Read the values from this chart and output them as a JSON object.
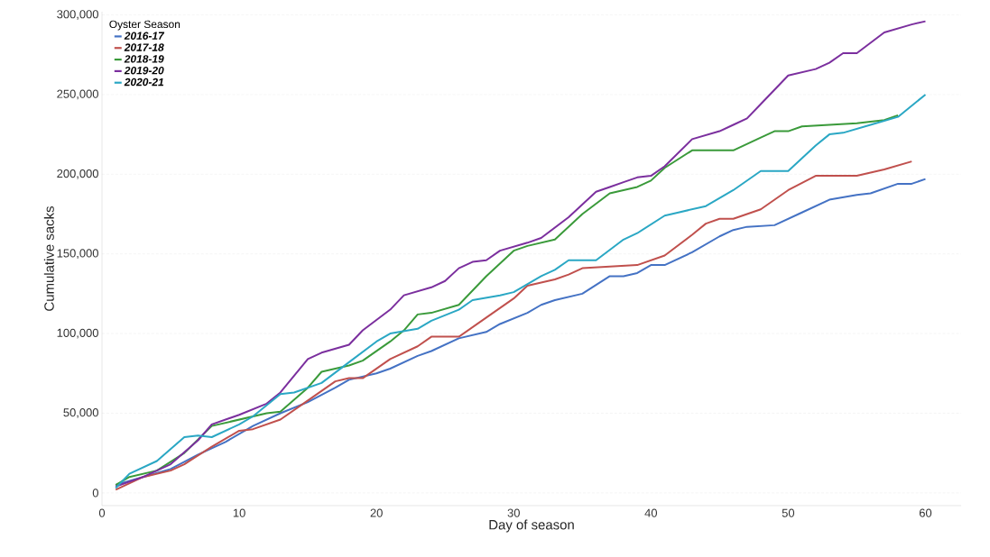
{
  "chart_data": {
    "type": "line",
    "xlabel": "Day of season",
    "ylabel": "Cumulative sacks",
    "legend_title": "Oyster Season",
    "xlim": [
      0,
      62.6
    ],
    "ylim": [
      -8000,
      302000
    ],
    "xticks": [
      0,
      10,
      20,
      30,
      40,
      50,
      60
    ],
    "yticks": [
      {
        "value": 0,
        "label": "0"
      },
      {
        "value": 50000,
        "label": "50,000"
      },
      {
        "value": 100000,
        "label": "100,000"
      },
      {
        "value": 150000,
        "label": "150,000"
      },
      {
        "value": 200000,
        "label": "200,000"
      },
      {
        "value": 250000,
        "label": "250,000"
      },
      {
        "value": 300000,
        "label": "300,000"
      }
    ],
    "grid": "y",
    "legend": "top left",
    "marker": "none",
    "line_style": "solid",
    "series": [
      {
        "name": "2016-17",
        "color": "#4472c4",
        "x": [
          1,
          3,
          5,
          7,
          9,
          11,
          13,
          15,
          17,
          18,
          20,
          21,
          23,
          24,
          26,
          28,
          29,
          31,
          32,
          33,
          35,
          37,
          38,
          39,
          40,
          41,
          43,
          45,
          46,
          47,
          49,
          51,
          53,
          55,
          56,
          58,
          59,
          60
        ],
        "values": [
          5000,
          10000,
          15000,
          24000,
          32000,
          42000,
          50000,
          57000,
          66000,
          71000,
          75000,
          78000,
          86000,
          89000,
          97000,
          101000,
          106000,
          113000,
          118000,
          121000,
          125000,
          136000,
          136000,
          138000,
          143000,
          143000,
          151000,
          161000,
          165000,
          167000,
          168000,
          176000,
          184000,
          187000,
          188000,
          194000,
          194000,
          197000
        ]
      },
      {
        "name": "2017-18",
        "color": "#c0504d",
        "x": [
          1,
          3,
          5,
          6,
          8,
          10,
          11,
          13,
          15,
          17,
          18,
          19,
          21,
          23,
          24,
          26,
          28,
          30,
          31,
          33,
          34,
          35,
          37,
          39,
          41,
          43,
          44,
          45,
          46,
          48,
          50,
          52,
          55,
          57,
          59
        ],
        "values": [
          2000,
          10000,
          14000,
          18000,
          29000,
          39000,
          40000,
          46000,
          58000,
          70000,
          72000,
          72000,
          84000,
          92000,
          98000,
          98000,
          110000,
          122000,
          130000,
          134000,
          137000,
          141000,
          142000,
          143000,
          149000,
          162000,
          169000,
          172000,
          172000,
          178000,
          190000,
          199000,
          199000,
          203000,
          208000
        ]
      },
      {
        "name": "2018-19",
        "color": "#3a9a3a",
        "x": [
          1,
          2,
          4,
          6,
          8,
          10,
          12,
          13,
          15,
          16,
          18,
          19,
          21,
          22,
          23,
          24,
          26,
          28,
          30,
          31,
          33,
          35,
          37,
          39,
          40,
          41,
          43,
          46,
          48,
          49,
          50,
          51,
          55,
          57,
          58
        ],
        "values": [
          5000,
          10000,
          14000,
          25000,
          42000,
          46000,
          50000,
          51000,
          66000,
          76000,
          80000,
          83000,
          95000,
          102000,
          112000,
          113000,
          118000,
          136000,
          152000,
          155000,
          159000,
          175000,
          188000,
          192000,
          196000,
          204000,
          215000,
          215000,
          223000,
          227000,
          227000,
          230000,
          232000,
          234000,
          237000
        ]
      },
      {
        "name": "2019-20",
        "color": "#7b2f9e",
        "x": [
          1,
          3,
          5,
          7,
          8,
          10,
          12,
          13,
          15,
          16,
          18,
          19,
          21,
          22,
          24,
          25,
          26,
          27,
          28,
          29,
          31,
          32,
          34,
          36,
          37,
          38,
          39,
          40,
          41,
          43,
          45,
          46,
          47,
          48,
          50,
          52,
          53,
          54,
          55,
          57,
          59,
          60
        ],
        "values": [
          4000,
          10000,
          18000,
          33000,
          43000,
          49000,
          56000,
          63000,
          84000,
          88000,
          93000,
          102000,
          115000,
          124000,
          129000,
          133000,
          141000,
          145000,
          146000,
          152000,
          157000,
          160000,
          173000,
          189000,
          192000,
          195000,
          198000,
          199000,
          205000,
          222000,
          227000,
          231000,
          235000,
          244000,
          262000,
          266000,
          270000,
          276000,
          276000,
          289000,
          294000,
          296000
        ]
      },
      {
        "name": "2020-21",
        "color": "#2aa7c4",
        "x": [
          1,
          2,
          4,
          6,
          7,
          8,
          10,
          11,
          13,
          14,
          16,
          18,
          20,
          21,
          23,
          24,
          26,
          27,
          29,
          30,
          32,
          33,
          34,
          36,
          38,
          39,
          41,
          42,
          44,
          46,
          48,
          50,
          52,
          53,
          54,
          56,
          58,
          60
        ],
        "values": [
          3000,
          12000,
          20000,
          35000,
          36000,
          35000,
          43000,
          48000,
          62000,
          63000,
          69000,
          82000,
          95000,
          100000,
          103000,
          108000,
          115000,
          121000,
          124000,
          126000,
          136000,
          140000,
          146000,
          146000,
          159000,
          163000,
          174000,
          176000,
          180000,
          190000,
          202000,
          202000,
          218000,
          225000,
          226000,
          231000,
          236000,
          250000
        ]
      }
    ]
  }
}
